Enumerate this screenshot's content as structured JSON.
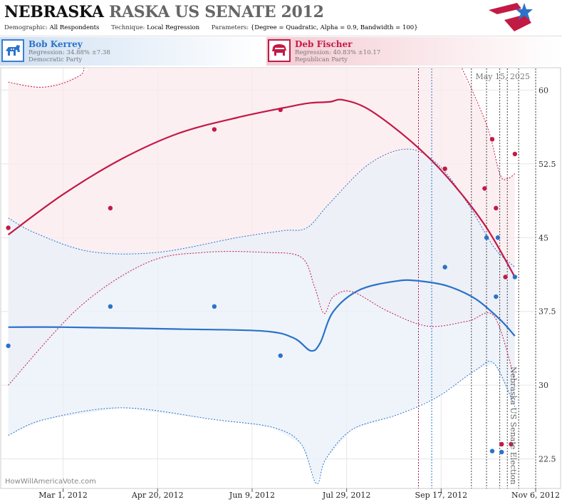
{
  "header": {
    "title_state": "NEBRASKA",
    "title_rest": "RASKA US SENATE 2012",
    "demographic_label": "Demographic:",
    "demographic_value": "All Respondents",
    "technique_label": "Technique:",
    "technique_value": "Local Regression",
    "parameters_label": "Parameters:",
    "parameters_value": "{Degree = Quadratic, Alpha = 0.9, Bandwidth = 100}"
  },
  "candidates": [
    {
      "name": "Bob Kerrey",
      "regression": "Regression: 34.88% ±7.38",
      "party": "Democratic Party",
      "color": "#2a73c8",
      "icon": "donkey-icon"
    },
    {
      "name": "Deb Fischer",
      "regression": "Regression: 40.83% ±10.17",
      "party": "Republican Party",
      "color": "#c21a45",
      "icon": "elephant-icon"
    }
  ],
  "chart_data": {
    "type": "scatter",
    "date_stamp": "May 15, 2025",
    "watermark": "HowWillAmericaVote.com",
    "election_label": "Nebraska US Senate Election",
    "x_ticks": [
      "Mar 1, 2012",
      "Apr 20, 2012",
      "Jun 9, 2012",
      "Jul 29, 2012",
      "Sep 17, 2012",
      "Nov 6, 2012"
    ],
    "x_range": [
      "2012-01-28",
      "2012-11-09"
    ],
    "y_ticks": [
      "22.5",
      "30",
      "37.5",
      "45",
      "52.5",
      "60"
    ],
    "ylim": [
      19.5,
      62.2
    ],
    "grid": true,
    "event_lines": [
      {
        "date": "2012-09-05",
        "color": "#9b1d5a"
      },
      {
        "date": "2012-09-12",
        "color": "#2a73c8"
      },
      {
        "date": "2012-10-03",
        "color": "#444444"
      },
      {
        "date": "2012-10-11",
        "color": "#444444"
      },
      {
        "date": "2012-10-18",
        "color": "#444444"
      },
      {
        "date": "2012-10-22",
        "color": "#444444"
      },
      {
        "date": "2012-10-28",
        "color": "#444444"
      },
      {
        "date": "2012-11-06",
        "color": "#444444"
      }
    ],
    "series": [
      {
        "name": "Deb Fischer",
        "color": "#c21a45",
        "band_fill": "#fbe9ee",
        "points": [
          {
            "x": "2012-02-01",
            "y": 46
          },
          {
            "x": "2012-03-26",
            "y": 48
          },
          {
            "x": "2012-05-20",
            "y": 56
          },
          {
            "x": "2012-06-24",
            "y": 58
          },
          {
            "x": "2012-09-19",
            "y": 52
          },
          {
            "x": "2012-10-14",
            "y": 55
          },
          {
            "x": "2012-10-10",
            "y": 50
          },
          {
            "x": "2012-10-16",
            "y": 48
          },
          {
            "x": "2012-10-26",
            "y": 53.5
          },
          {
            "x": "2012-10-21",
            "y": 41
          },
          {
            "x": "2012-10-19",
            "y": 24
          },
          {
            "x": "2012-10-24",
            "y": 24
          }
        ],
        "fit": [
          {
            "x": "2012-02-01",
            "y": 45.3
          },
          {
            "x": "2012-03-01",
            "y": 49.4
          },
          {
            "x": "2012-04-01",
            "y": 53
          },
          {
            "x": "2012-05-01",
            "y": 55.6
          },
          {
            "x": "2012-06-01",
            "y": 57.2
          },
          {
            "x": "2012-07-01",
            "y": 58.4
          },
          {
            "x": "2012-07-10",
            "y": 58.7
          },
          {
            "x": "2012-07-20",
            "y": 58.8
          },
          {
            "x": "2012-07-27",
            "y": 59
          },
          {
            "x": "2012-08-10",
            "y": 58
          },
          {
            "x": "2012-09-01",
            "y": 54.8
          },
          {
            "x": "2012-09-20",
            "y": 51.2
          },
          {
            "x": "2012-10-10",
            "y": 46.3
          },
          {
            "x": "2012-10-26",
            "y": 41
          }
        ],
        "upper": [
          {
            "x": "2012-02-01",
            "y": 60.8
          },
          {
            "x": "2012-02-20",
            "y": 60.3
          },
          {
            "x": "2012-03-10",
            "y": 61.5
          },
          {
            "x": "2012-04-01",
            "y": 65
          },
          {
            "x": "2012-09-10",
            "y": 65
          },
          {
            "x": "2012-09-20",
            "y": 65
          },
          {
            "x": "2012-10-10",
            "y": 57
          },
          {
            "x": "2012-10-18",
            "y": 51.5
          },
          {
            "x": "2012-10-22",
            "y": 51
          },
          {
            "x": "2012-10-26",
            "y": 51.5
          }
        ],
        "lower": [
          {
            "x": "2012-02-01",
            "y": 30
          },
          {
            "x": "2012-03-10",
            "y": 38
          },
          {
            "x": "2012-04-15",
            "y": 42.5
          },
          {
            "x": "2012-05-15",
            "y": 43.5
          },
          {
            "x": "2012-06-15",
            "y": 43.5
          },
          {
            "x": "2012-07-05",
            "y": 43
          },
          {
            "x": "2012-07-12",
            "y": 40
          },
          {
            "x": "2012-07-17",
            "y": 37.3
          },
          {
            "x": "2012-07-22",
            "y": 39
          },
          {
            "x": "2012-08-01",
            "y": 39.5
          },
          {
            "x": "2012-08-20",
            "y": 37.5
          },
          {
            "x": "2012-09-10",
            "y": 36
          },
          {
            "x": "2012-10-01",
            "y": 36.5
          },
          {
            "x": "2012-10-15",
            "y": 37
          },
          {
            "x": "2012-10-26",
            "y": 30.5
          }
        ]
      },
      {
        "name": "Bob Kerrey",
        "color": "#2a73c8",
        "band_fill": "#e9f0fa",
        "points": [
          {
            "x": "2012-02-01",
            "y": 34
          },
          {
            "x": "2012-03-26",
            "y": 38
          },
          {
            "x": "2012-05-20",
            "y": 38
          },
          {
            "x": "2012-06-24",
            "y": 33
          },
          {
            "x": "2012-09-19",
            "y": 42
          },
          {
            "x": "2012-10-11",
            "y": 45
          },
          {
            "x": "2012-10-17",
            "y": 45
          },
          {
            "x": "2012-10-16",
            "y": 39
          },
          {
            "x": "2012-10-26",
            "y": 41
          },
          {
            "x": "2012-10-14",
            "y": 23.3
          },
          {
            "x": "2012-10-19",
            "y": 23.2
          }
        ],
        "fit": [
          {
            "x": "2012-02-01",
            "y": 35.9
          },
          {
            "x": "2012-03-01",
            "y": 35.9
          },
          {
            "x": "2012-05-01",
            "y": 35.7
          },
          {
            "x": "2012-06-15",
            "y": 35.5
          },
          {
            "x": "2012-07-01",
            "y": 34.8
          },
          {
            "x": "2012-07-10",
            "y": 33.5
          },
          {
            "x": "2012-07-15",
            "y": 34.3
          },
          {
            "x": "2012-07-22",
            "y": 37.5
          },
          {
            "x": "2012-08-05",
            "y": 39.7
          },
          {
            "x": "2012-08-25",
            "y": 40.6
          },
          {
            "x": "2012-09-05",
            "y": 40.6
          },
          {
            "x": "2012-09-20",
            "y": 40.1
          },
          {
            "x": "2012-10-05",
            "y": 38.8
          },
          {
            "x": "2012-10-18",
            "y": 36.7
          },
          {
            "x": "2012-10-26",
            "y": 35
          }
        ],
        "upper": [
          {
            "x": "2012-02-01",
            "y": 47
          },
          {
            "x": "2012-02-15",
            "y": 45.5
          },
          {
            "x": "2012-03-15",
            "y": 43.6
          },
          {
            "x": "2012-04-20",
            "y": 43.5
          },
          {
            "x": "2012-06-01",
            "y": 45
          },
          {
            "x": "2012-06-25",
            "y": 45.7
          },
          {
            "x": "2012-07-08",
            "y": 46
          },
          {
            "x": "2012-07-20",
            "y": 48.5
          },
          {
            "x": "2012-08-10",
            "y": 52.5
          },
          {
            "x": "2012-08-30",
            "y": 54
          },
          {
            "x": "2012-09-15",
            "y": 52.5
          },
          {
            "x": "2012-10-01",
            "y": 48.5
          },
          {
            "x": "2012-10-15",
            "y": 44
          },
          {
            "x": "2012-10-26",
            "y": 42
          }
        ],
        "lower": [
          {
            "x": "2012-02-01",
            "y": 24.9
          },
          {
            "x": "2012-02-20",
            "y": 26.5
          },
          {
            "x": "2012-04-01",
            "y": 27.7
          },
          {
            "x": "2012-05-20",
            "y": 26.5
          },
          {
            "x": "2012-06-20",
            "y": 25.7
          },
          {
            "x": "2012-07-05",
            "y": 24
          },
          {
            "x": "2012-07-13",
            "y": 20
          },
          {
            "x": "2012-07-18",
            "y": 22.5
          },
          {
            "x": "2012-08-01",
            "y": 25.5
          },
          {
            "x": "2012-08-25",
            "y": 27
          },
          {
            "x": "2012-09-15",
            "y": 28.8
          },
          {
            "x": "2012-10-05",
            "y": 31.5
          },
          {
            "x": "2012-10-15",
            "y": 32.2
          },
          {
            "x": "2012-10-26",
            "y": 27.8
          }
        ]
      }
    ]
  }
}
